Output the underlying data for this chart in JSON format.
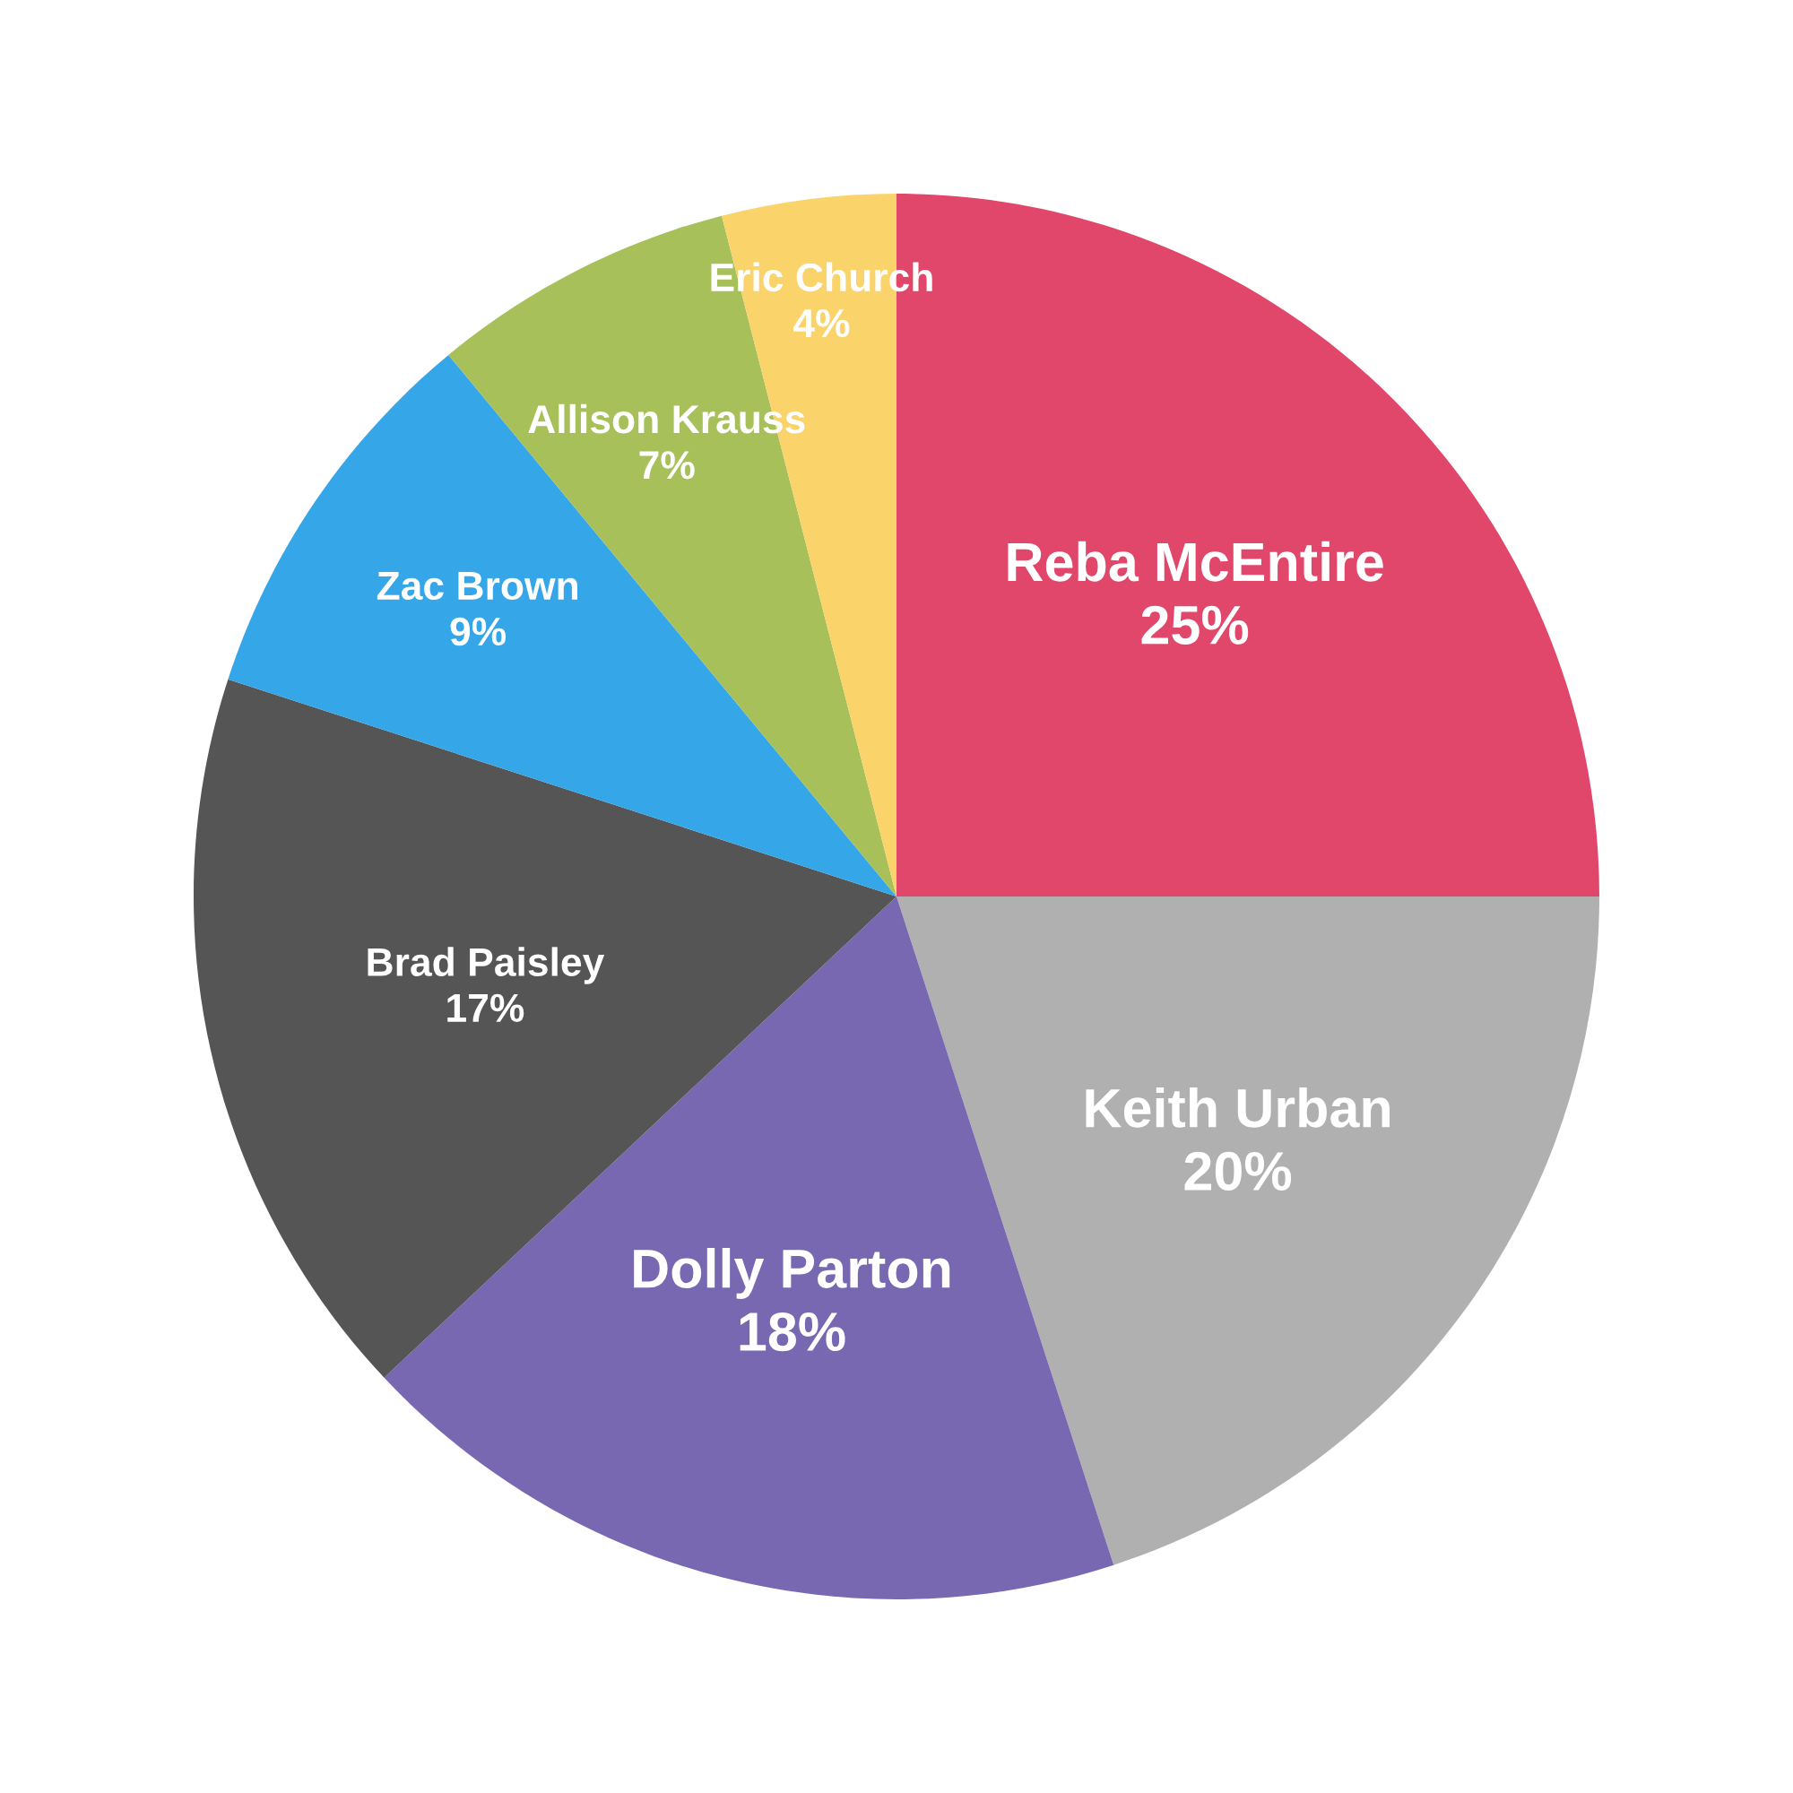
{
  "chart_data": {
    "type": "pie",
    "categories": [
      "Reba McEntire",
      "Keith Urban",
      "Dolly Parton",
      "Brad Paisley",
      "Zac Brown",
      "Allison Krauss",
      "Eric Church"
    ],
    "values": [
      25,
      20,
      18,
      17,
      9,
      7,
      4
    ],
    "value_labels": [
      "25%",
      "20%",
      "18%",
      "17%",
      "9%",
      "7%",
      "4%"
    ],
    "colors": [
      "#e0476a",
      "#b0b0b0",
      "#7868b2",
      "#555555",
      "#35a6e8",
      "#a8c05a",
      "#fbd36b"
    ],
    "legend": false
  }
}
